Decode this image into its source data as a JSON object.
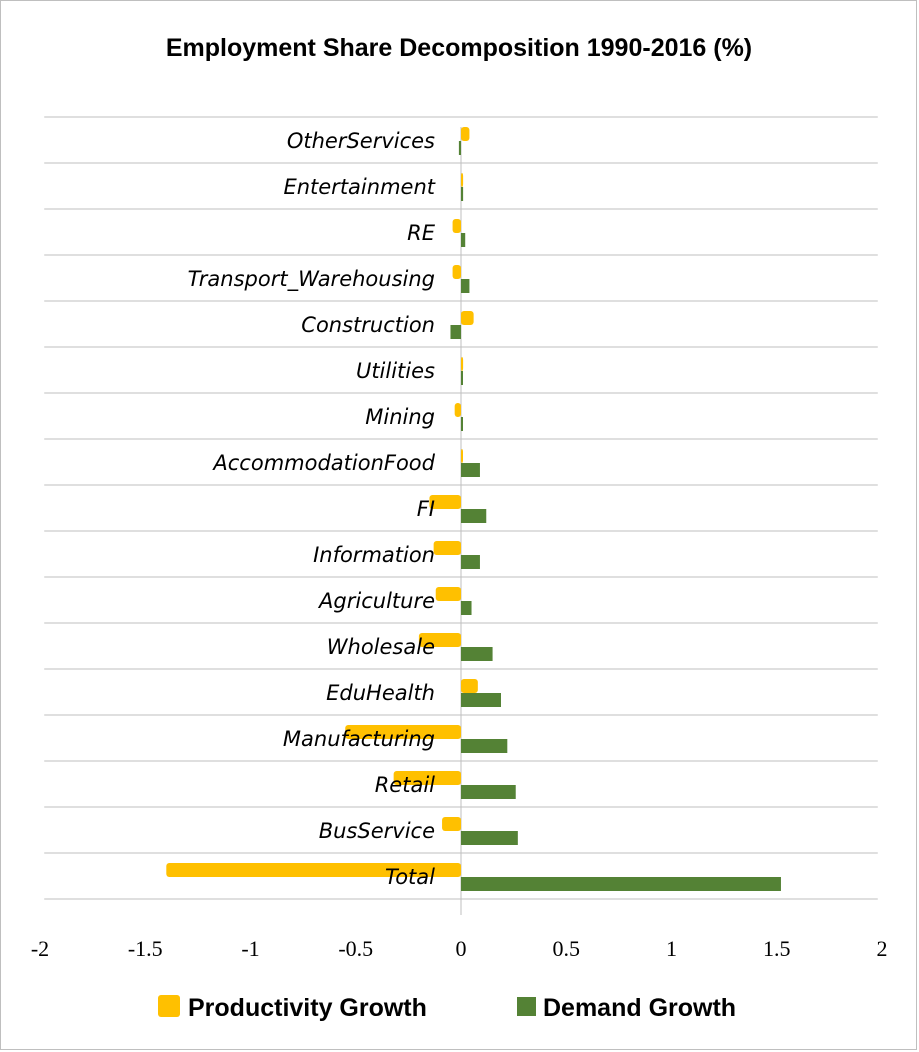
{
  "chart_data": {
    "type": "bar",
    "orientation": "horizontal",
    "title": "Employment Share Decomposition 1990-2016  (%)",
    "xlabel": "",
    "ylabel": "",
    "xlim": [
      -2,
      2
    ],
    "x_ticks": [
      "-2",
      "-1.5",
      "-1",
      "-0.5",
      "0",
      "0.5",
      "1",
      "1.5",
      "2"
    ],
    "grid": "horizontal separators between categories",
    "legend_position": "bottom",
    "categories": [
      "OtherServices",
      "Entertainment",
      "RE",
      "Transport_Warehousing",
      "Construction",
      "Utilities",
      "Mining",
      "AccommodationFood",
      "FI",
      "Information",
      "Agriculture",
      "Wholesale",
      "EduHealth",
      "Manufacturing",
      "Retail",
      "BusService",
      "Total"
    ],
    "series": [
      {
        "name": "Productivity Growth",
        "color": "#ffc000",
        "values": [
          0.04,
          0.01,
          -0.04,
          -0.04,
          0.06,
          0.01,
          -0.03,
          0.0,
          -0.15,
          -0.13,
          -0.12,
          -0.2,
          0.08,
          -0.55,
          -0.32,
          -0.09,
          -1.4
        ]
      },
      {
        "name": "Demand Growth",
        "color": "#548235",
        "values": [
          -0.01,
          0.01,
          0.02,
          0.04,
          -0.05,
          0.0,
          0.005,
          0.09,
          0.12,
          0.09,
          0.05,
          0.15,
          0.19,
          0.22,
          0.26,
          0.27,
          1.52
        ]
      }
    ]
  }
}
